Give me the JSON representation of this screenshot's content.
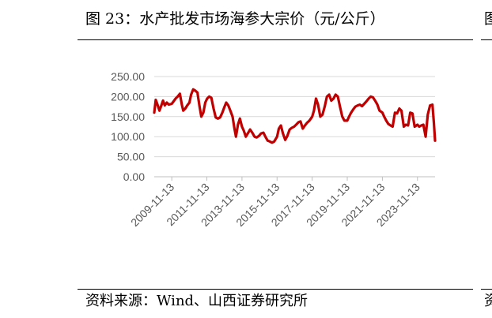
{
  "figure": {
    "title": "图 23：水产批发市场海参大宗价（元/公斤）",
    "source": "资料来源：Wind、山西证券研究所",
    "edge_glyph_top": "图",
    "edge_glyph_bottom": "资"
  },
  "chart_data": {
    "type": "line",
    "title": "",
    "xlabel": "",
    "ylabel": "",
    "ylim": [
      0,
      250
    ],
    "yticks": [
      "0.00",
      "50.00",
      "100.00",
      "150.00",
      "200.00",
      "250.00"
    ],
    "xticks": [
      "2009-11-13",
      "2011-11-13",
      "2013-11-13",
      "2015-11-13",
      "2017-11-13",
      "2019-11-13",
      "2021-11-13",
      "2023-11-13"
    ],
    "xlim": [
      "2008-11-13",
      "2024-11-13"
    ],
    "grid": true,
    "legend": "none",
    "series": [
      {
        "color": "#C00000",
        "points": [
          [
            "2008-11-13",
            160
          ],
          [
            "2008-12-15",
            192
          ],
          [
            "2009-01-20",
            180
          ],
          [
            "2009-03-01",
            165
          ],
          [
            "2009-04-10",
            178
          ],
          [
            "2009-05-15",
            190
          ],
          [
            "2009-06-20",
            178
          ],
          [
            "2009-08-01",
            185
          ],
          [
            "2009-09-10",
            180
          ],
          [
            "2009-11-13",
            182
          ],
          [
            "2009-12-20",
            188
          ],
          [
            "2010-02-01",
            195
          ],
          [
            "2010-03-15",
            200
          ],
          [
            "2010-05-01",
            207
          ],
          [
            "2010-06-10",
            180
          ],
          [
            "2010-07-10",
            165
          ],
          [
            "2010-08-20",
            170
          ],
          [
            "2010-10-01",
            178
          ],
          [
            "2010-11-15",
            185
          ],
          [
            "2010-12-20",
            205
          ],
          [
            "2011-02-01",
            218
          ],
          [
            "2011-03-15",
            215
          ],
          [
            "2011-05-01",
            210
          ],
          [
            "2011-06-15",
            175
          ],
          [
            "2011-07-20",
            150
          ],
          [
            "2011-09-01",
            160
          ],
          [
            "2011-10-10",
            185
          ],
          [
            "2011-11-20",
            195
          ],
          [
            "2012-01-01",
            200
          ],
          [
            "2012-02-15",
            197
          ],
          [
            "2012-04-01",
            170
          ],
          [
            "2012-05-15",
            148
          ],
          [
            "2012-07-01",
            145
          ],
          [
            "2012-08-15",
            148
          ],
          [
            "2012-10-01",
            160
          ],
          [
            "2012-11-15",
            175
          ],
          [
            "2012-12-20",
            185
          ],
          [
            "2013-02-01",
            178
          ],
          [
            "2013-03-15",
            165
          ],
          [
            "2013-05-01",
            150
          ],
          [
            "2013-06-10",
            120
          ],
          [
            "2013-07-10",
            100
          ],
          [
            "2013-08-20",
            130
          ],
          [
            "2013-10-01",
            145
          ],
          [
            "2013-11-13",
            125
          ],
          [
            "2013-12-20",
            115
          ],
          [
            "2014-02-01",
            100
          ],
          [
            "2014-03-15",
            108
          ],
          [
            "2014-05-01",
            118
          ],
          [
            "2014-06-15",
            110
          ],
          [
            "2014-08-01",
            100
          ],
          [
            "2014-09-15",
            98
          ],
          [
            "2014-11-01",
            102
          ],
          [
            "2014-12-15",
            108
          ],
          [
            "2015-02-01",
            110
          ],
          [
            "2015-03-15",
            100
          ],
          [
            "2015-05-01",
            90
          ],
          [
            "2015-06-15",
            88
          ],
          [
            "2015-08-01",
            85
          ],
          [
            "2015-09-15",
            88
          ],
          [
            "2015-11-13",
            100
          ],
          [
            "2015-12-20",
            120
          ],
          [
            "2016-02-01",
            128
          ],
          [
            "2016-03-15",
            108
          ],
          [
            "2016-05-01",
            92
          ],
          [
            "2016-06-15",
            102
          ],
          [
            "2016-08-01",
            118
          ],
          [
            "2016-09-15",
            122
          ],
          [
            "2016-11-01",
            125
          ],
          [
            "2016-12-15",
            130
          ],
          [
            "2017-02-01",
            136
          ],
          [
            "2017-03-15",
            138
          ],
          [
            "2017-05-01",
            120
          ],
          [
            "2017-06-15",
            128
          ],
          [
            "2017-08-01",
            135
          ],
          [
            "2017-09-15",
            140
          ],
          [
            "2017-11-13",
            150
          ],
          [
            "2017-12-20",
            165
          ],
          [
            "2018-02-01",
            195
          ],
          [
            "2018-03-15",
            180
          ],
          [
            "2018-05-01",
            150
          ],
          [
            "2018-06-15",
            155
          ],
          [
            "2018-08-01",
            175
          ],
          [
            "2018-09-15",
            200
          ],
          [
            "2018-11-01",
            205
          ],
          [
            "2018-12-15",
            190
          ],
          [
            "2019-02-01",
            195
          ],
          [
            "2019-03-15",
            205
          ],
          [
            "2019-05-01",
            200
          ],
          [
            "2019-06-15",
            175
          ],
          [
            "2019-08-01",
            150
          ],
          [
            "2019-09-15",
            140
          ],
          [
            "2019-11-13",
            140
          ],
          [
            "2019-12-20",
            150
          ],
          [
            "2020-02-01",
            160
          ],
          [
            "2020-03-15",
            168
          ],
          [
            "2020-05-01",
            175
          ],
          [
            "2020-06-15",
            178
          ],
          [
            "2020-08-01",
            180
          ],
          [
            "2020-09-15",
            176
          ],
          [
            "2020-11-01",
            182
          ],
          [
            "2020-12-15",
            188
          ],
          [
            "2021-02-01",
            195
          ],
          [
            "2021-03-15",
            200
          ],
          [
            "2021-05-01",
            198
          ],
          [
            "2021-06-15",
            190
          ],
          [
            "2021-08-01",
            180
          ],
          [
            "2021-09-15",
            165
          ],
          [
            "2021-11-13",
            160
          ],
          [
            "2021-12-20",
            150
          ],
          [
            "2022-02-01",
            140
          ],
          [
            "2022-03-15",
            132
          ],
          [
            "2022-05-01",
            128
          ],
          [
            "2022-06-15",
            125
          ],
          [
            "2022-08-01",
            160
          ],
          [
            "2022-09-15",
            158
          ],
          [
            "2022-11-01",
            170
          ],
          [
            "2022-12-15",
            165
          ],
          [
            "2023-02-01",
            125
          ],
          [
            "2023-03-15",
            130
          ],
          [
            "2023-05-01",
            128
          ],
          [
            "2023-06-15",
            160
          ],
          [
            "2023-08-01",
            158
          ],
          [
            "2023-09-15",
            125
          ],
          [
            "2023-11-13",
            130
          ],
          [
            "2023-12-20",
            125
          ],
          [
            "2024-02-01",
            128
          ],
          [
            "2024-03-15",
            130
          ],
          [
            "2024-05-01",
            100
          ],
          [
            "2024-06-15",
            155
          ],
          [
            "2024-08-01",
            178
          ],
          [
            "2024-09-20",
            180
          ],
          [
            "2024-10-20",
            135
          ],
          [
            "2024-11-13",
            90
          ]
        ]
      }
    ]
  }
}
